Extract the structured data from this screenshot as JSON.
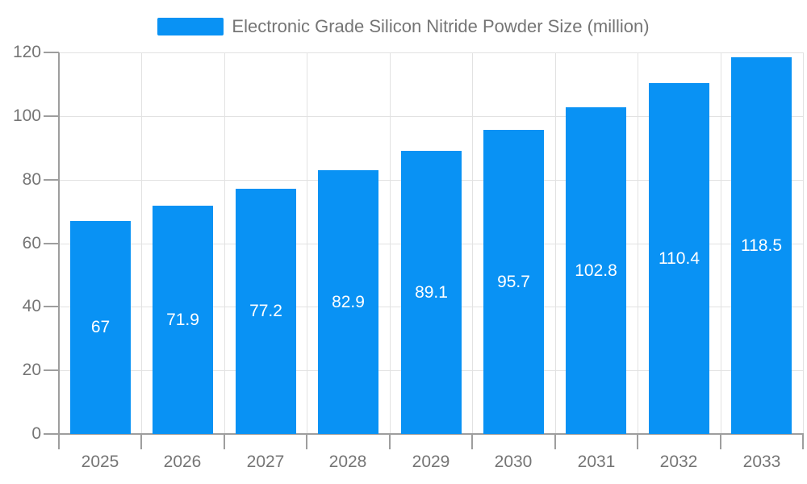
{
  "chart_data": {
    "type": "bar",
    "title": "Electronic Grade Silicon Nitride Powder Size (million)",
    "categories": [
      "2025",
      "2026",
      "2027",
      "2028",
      "2029",
      "2030",
      "2031",
      "2032",
      "2033"
    ],
    "values": [
      67,
      71.9,
      77.2,
      82.9,
      89.1,
      95.7,
      102.8,
      110.4,
      118.5
    ],
    "value_labels": [
      "67",
      "71.9",
      "77.2",
      "82.9",
      "89.1",
      "95.7",
      "102.8",
      "110.4",
      "118.5"
    ],
    "xlabel": "",
    "ylabel": "",
    "ylim": [
      0,
      120
    ],
    "ytick_step": 20,
    "yticks": [
      "0",
      "20",
      "40",
      "60",
      "80",
      "100",
      "120"
    ],
    "grid": true,
    "legend_position": "top-center",
    "bar_label_position": "inside-middle",
    "colors": {
      "bar": "#0992f4",
      "grid_line": "#e2e2e2",
      "axis_line": "#9e9e9e",
      "tick_text": "#757575",
      "title_text": "#757575",
      "bar_label_text": "#ffffff",
      "background": "#ffffff"
    }
  }
}
